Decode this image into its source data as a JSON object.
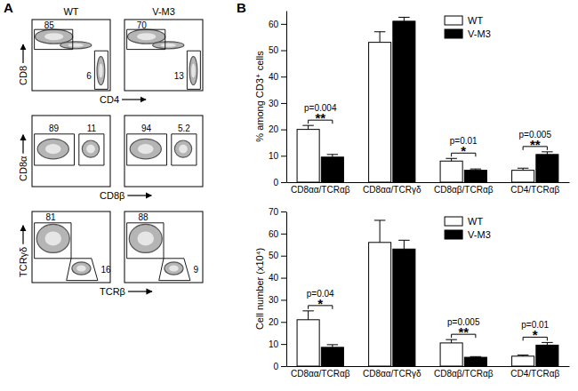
{
  "flow_panels": {
    "label": "A",
    "columns": [
      "WT",
      "V-M3"
    ],
    "rows": [
      {
        "x_label": "CD4",
        "y_label": "CD8",
        "gates": [
          [
            85,
            6
          ],
          [
            70,
            13
          ]
        ]
      },
      {
        "x_label": "CD8β",
        "y_label": "CD8α",
        "gates": [
          [
            89,
            11
          ],
          [
            94,
            5.2
          ]
        ]
      },
      {
        "x_label": "TCRβ",
        "y_label": "TCRγδ",
        "gates": [
          [
            81,
            16
          ],
          [
            88,
            9
          ]
        ]
      }
    ]
  },
  "chart_data": [
    {
      "type": "bar",
      "panel_label": "B",
      "y_label": "% among CD3⁺ cells",
      "categories": [
        "CD8αα/TCRαβ",
        "CD8αα/TCRγδ",
        "CD8αβ/TCRαβ",
        "CD4/TCRαβ"
      ],
      "series": [
        {
          "name": "WT",
          "color": "#ffffff",
          "values": [
            20,
            53,
            8,
            4.5
          ],
          "errors": [
            1.5,
            4,
            1,
            0.8
          ]
        },
        {
          "name": "V-M3",
          "color": "#000000",
          "values": [
            9.5,
            61,
            4.5,
            10.5
          ],
          "errors": [
            1,
            1.5,
            0.5,
            1
          ]
        }
      ],
      "ylim": [
        0,
        65
      ],
      "yticks": [
        0,
        10,
        20,
        30,
        40,
        50,
        60
      ],
      "legend": "top-right",
      "annotations": [
        {
          "category": "CD8αα/TCRαβ",
          "text": "p=0.004",
          "stars": "**"
        },
        {
          "category": "CD8αβ/TCRαβ",
          "text": "p=0.01",
          "stars": "*"
        },
        {
          "category": "CD4/TCRαβ",
          "text": "p=0.005",
          "stars": "**"
        }
      ]
    },
    {
      "type": "bar",
      "y_label": "Cell number (x10⁴)",
      "categories": [
        "CD8αα/TCRαβ",
        "CD8αα/TCRγδ",
        "CD8αβ/TCRαβ",
        "CD4/TCRαβ"
      ],
      "series": [
        {
          "name": "WT",
          "color": "#ffffff",
          "values": [
            21,
            56,
            10.5,
            4.5
          ],
          "errors": [
            4,
            10,
            1.5,
            0.5
          ]
        },
        {
          "name": "V-M3",
          "color": "#000000",
          "values": [
            8.5,
            53,
            4,
            9.5
          ],
          "errors": [
            1.2,
            4,
            0.3,
            1.2
          ]
        }
      ],
      "ylim": [
        0,
        70
      ],
      "yticks": [
        0,
        10,
        20,
        30,
        40,
        50,
        60,
        70
      ],
      "legend": "top-right",
      "annotations": [
        {
          "category": "CD8αα/TCRαβ",
          "text": "p=0.04",
          "stars": "*"
        },
        {
          "category": "CD8αβ/TCRαβ",
          "text": "p=0.005",
          "stars": "**"
        },
        {
          "category": "CD4/TCRαβ",
          "text": "p=0.01",
          "stars": "*"
        }
      ]
    }
  ]
}
